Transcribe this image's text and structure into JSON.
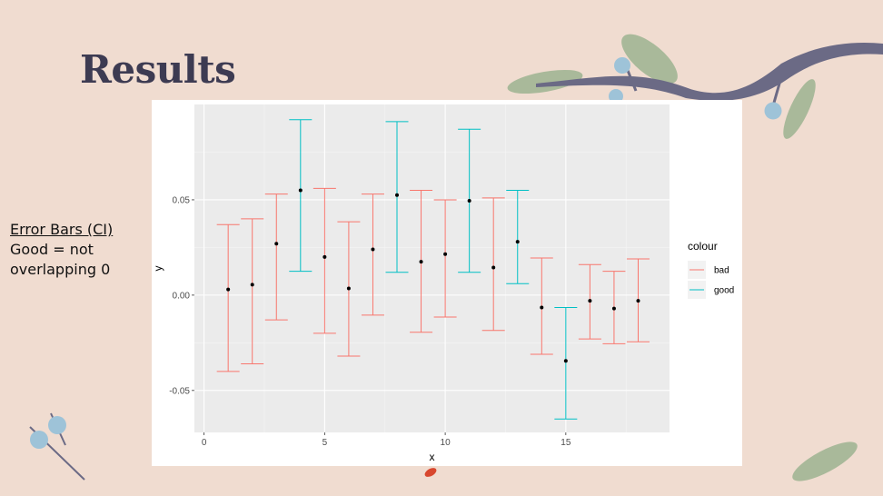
{
  "slide": {
    "title": "Results",
    "note_heading": "Error Bars (CI)",
    "note_lines": [
      "Good = not",
      "overlapping 0"
    ]
  },
  "colors": {
    "background": "#f0dcd0",
    "title": "#3d3b52",
    "bad": "#f8766d",
    "good": "#00bfc4",
    "panel": "#ebebeb",
    "branch": "#6b6a85",
    "berry": "#9ec3d8",
    "leaf": "#a9b99a"
  },
  "chart_data": {
    "type": "scatter",
    "subtype": "errorbar",
    "xlabel": "x",
    "ylabel": "y",
    "xlim": [
      -0.4,
      19.3
    ],
    "ylim": [
      -0.072,
      0.1
    ],
    "x_ticks": [
      0,
      5,
      10,
      15
    ],
    "y_ticks": [
      -0.05,
      0.0,
      0.05
    ],
    "y_tick_labels": [
      "-0.05",
      "0.00",
      "0.05"
    ],
    "x_tick_labels": [
      "0",
      "5",
      "10",
      "15"
    ],
    "grid": true,
    "legend": {
      "title": "colour",
      "position": "right",
      "entries": [
        "bad",
        "good"
      ]
    },
    "points": [
      {
        "x": 1,
        "y": 0.003,
        "lower": -0.04,
        "upper": 0.037,
        "colour": "bad"
      },
      {
        "x": 2,
        "y": 0.0055,
        "lower": -0.036,
        "upper": 0.04,
        "colour": "bad"
      },
      {
        "x": 3,
        "y": 0.027,
        "lower": -0.013,
        "upper": 0.053,
        "colour": "bad"
      },
      {
        "x": 4,
        "y": 0.055,
        "lower": 0.0125,
        "upper": 0.092,
        "colour": "good"
      },
      {
        "x": 5,
        "y": 0.02,
        "lower": -0.02,
        "upper": 0.056,
        "colour": "bad"
      },
      {
        "x": 6,
        "y": 0.0035,
        "lower": -0.032,
        "upper": 0.0385,
        "colour": "bad"
      },
      {
        "x": 7,
        "y": 0.024,
        "lower": -0.0105,
        "upper": 0.053,
        "colour": "bad"
      },
      {
        "x": 8,
        "y": 0.0525,
        "lower": 0.012,
        "upper": 0.091,
        "colour": "good"
      },
      {
        "x": 9,
        "y": 0.0175,
        "lower": -0.0195,
        "upper": 0.055,
        "colour": "bad"
      },
      {
        "x": 10,
        "y": 0.0215,
        "lower": -0.0115,
        "upper": 0.05,
        "colour": "bad"
      },
      {
        "x": 11,
        "y": 0.0495,
        "lower": 0.012,
        "upper": 0.087,
        "colour": "good"
      },
      {
        "x": 12,
        "y": 0.0145,
        "lower": -0.0185,
        "upper": 0.051,
        "colour": "bad"
      },
      {
        "x": 13,
        "y": 0.028,
        "lower": 0.006,
        "upper": 0.055,
        "colour": "good"
      },
      {
        "x": 14,
        "y": -0.0065,
        "lower": -0.031,
        "upper": 0.0195,
        "colour": "bad"
      },
      {
        "x": 15,
        "y": -0.0345,
        "lower": -0.065,
        "upper": -0.0065,
        "colour": "good"
      },
      {
        "x": 16,
        "y": -0.003,
        "lower": -0.023,
        "upper": 0.016,
        "colour": "bad"
      },
      {
        "x": 17,
        "y": -0.007,
        "lower": -0.0255,
        "upper": 0.0125,
        "colour": "bad"
      },
      {
        "x": 18,
        "y": -0.003,
        "lower": -0.0245,
        "upper": 0.019,
        "colour": "bad"
      }
    ]
  }
}
